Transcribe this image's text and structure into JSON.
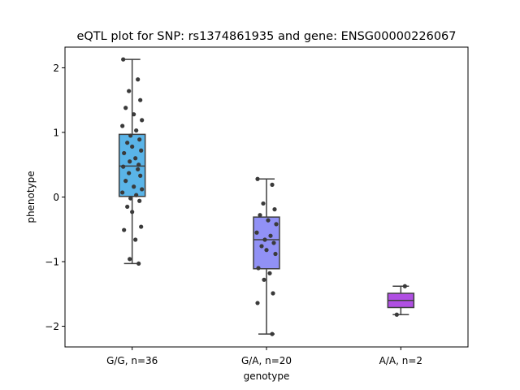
{
  "chart_data": {
    "type": "box",
    "title": "eQTL plot for SNP: rs1374861935 and gene: ENSG00000226067",
    "xlabel": "genotype",
    "ylabel": "phenotype",
    "ylim": [
      -2.32,
      2.32
    ],
    "yticks": [
      -2,
      -1,
      0,
      1,
      2
    ],
    "ytick_labels": [
      "−2",
      "−1",
      "0",
      "1",
      "2"
    ],
    "grid": false,
    "groups": [
      {
        "label": "G/G, n=36",
        "color": "#5ab4e8",
        "q1": 0.01,
        "median": 0.48,
        "q3": 0.97,
        "whisker_low": -1.03,
        "whisker_high": 2.13,
        "points": [
          2.13,
          1.82,
          1.64,
          1.5,
          1.38,
          1.28,
          1.19,
          1.1,
          1.03,
          0.95,
          0.89,
          0.84,
          0.78,
          0.72,
          0.68,
          0.6,
          0.55,
          0.5,
          0.47,
          0.43,
          0.37,
          0.33,
          0.25,
          0.16,
          0.12,
          0.07,
          0.03,
          -0.02,
          -0.06,
          -0.15,
          -0.23,
          -0.46,
          -0.51,
          -0.66,
          -0.96,
          -1.03
        ]
      },
      {
        "label": "G/A, n=20",
        "color": "#9191f5",
        "q1": -1.11,
        "median": -0.66,
        "q3": -0.31,
        "whisker_low": -2.12,
        "whisker_high": 0.28,
        "points": [
          0.28,
          0.19,
          -0.1,
          -0.19,
          -0.28,
          -0.36,
          -0.42,
          -0.55,
          -0.6,
          -0.66,
          -0.71,
          -0.76,
          -0.82,
          -0.88,
          -1.1,
          -1.18,
          -1.28,
          -1.49,
          -1.64,
          -2.12
        ]
      },
      {
        "label": "A/A, n=2",
        "color": "#b04fe3",
        "q1": -1.71,
        "median": -1.6,
        "q3": -1.49,
        "whisker_low": -1.82,
        "whisker_high": -1.38,
        "points": [
          -1.38,
          -1.82
        ]
      }
    ]
  }
}
